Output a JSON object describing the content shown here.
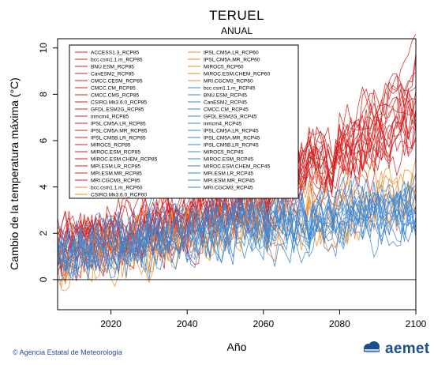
{
  "chart_data": {
    "type": "line",
    "title": "TERUEL",
    "subtitle": "ANUAL",
    "xlabel": "Año",
    "ylabel": "Cambio de la temperatura máxima (°C)",
    "xlim": [
      2006,
      2100
    ],
    "ylim": [
      -1.3,
      10.4
    ],
    "xticks": [
      2020,
      2040,
      2060,
      2080,
      2100
    ],
    "yticks": [
      0,
      2,
      4,
      6,
      8,
      10
    ],
    "legend_position": "top-left",
    "grid": false,
    "colors": {
      "rcp85": "#d62020",
      "rcp60": "#f08c2c",
      "rcp45": "#3b86d4"
    },
    "scenarios": {
      "rcp85": {
        "anchors": [
          [
            2006,
            1.2
          ],
          [
            2020,
            1.7
          ],
          [
            2040,
            2.5
          ],
          [
            2060,
            3.7
          ],
          [
            2080,
            5.4
          ],
          [
            2100,
            7.3
          ]
        ],
        "spread": 0.55
      },
      "rcp60": {
        "anchors": [
          [
            2006,
            1.1
          ],
          [
            2020,
            1.5
          ],
          [
            2040,
            2.0
          ],
          [
            2060,
            2.6
          ],
          [
            2080,
            3.2
          ],
          [
            2100,
            3.9
          ]
        ],
        "spread": 0.5
      },
      "rcp45": {
        "anchors": [
          [
            2006,
            1.1
          ],
          [
            2020,
            1.5
          ],
          [
            2040,
            2.0
          ],
          [
            2060,
            2.5
          ],
          [
            2080,
            2.8
          ],
          [
            2100,
            3.0
          ]
        ],
        "spread": 0.5
      }
    },
    "series": [
      {
        "name": "ACCESS1.3_RCP85",
        "scenario": "rcp85"
      },
      {
        "name": "bcc.csm1.1.m_RCP85",
        "scenario": "rcp85"
      },
      {
        "name": "BNU.ESM_RCP85",
        "scenario": "rcp85"
      },
      {
        "name": "CanESM2_RCP85",
        "scenario": "rcp85"
      },
      {
        "name": "CMCC.CESM_RCP85",
        "scenario": "rcp85"
      },
      {
        "name": "CMCC.CM_RCP85",
        "scenario": "rcp85"
      },
      {
        "name": "CMCC.CMS_RCP85",
        "scenario": "rcp85"
      },
      {
        "name": "CSIRO.Mk3.6.0_RCP85",
        "scenario": "rcp85"
      },
      {
        "name": "GFDL.ESM2G_RCP85",
        "scenario": "rcp85"
      },
      {
        "name": "inmcm4_RCP85",
        "scenario": "rcp85"
      },
      {
        "name": "IPSL.CM5A.LR_RCP85",
        "scenario": "rcp85"
      },
      {
        "name": "IPSL.CM5A.MR_RCP85",
        "scenario": "rcp85"
      },
      {
        "name": "IPSL.CM5B.LR_RCP85",
        "scenario": "rcp85"
      },
      {
        "name": "MIROC5_RCP85",
        "scenario": "rcp85"
      },
      {
        "name": "MIROC.ESM_RCP85",
        "scenario": "rcp85"
      },
      {
        "name": "MIROC.ESM.CHEM_RCP85",
        "scenario": "rcp85"
      },
      {
        "name": "MPI.ESM.LR_RCP85",
        "scenario": "rcp85"
      },
      {
        "name": "MPI.ESM.MR_RCP85",
        "scenario": "rcp85"
      },
      {
        "name": "MRI.CGCM3_RCP85",
        "scenario": "rcp85"
      },
      {
        "name": "bcc.csm1.1.m_RCP60",
        "scenario": "rcp60"
      },
      {
        "name": "CSIRO.Mk3.6.0_RCP60",
        "scenario": "rcp60"
      },
      {
        "name": "IPSL.CM5A.LR_RCP60",
        "scenario": "rcp60"
      },
      {
        "name": "IPSL.CM5A.MR_RCP60",
        "scenario": "rcp60"
      },
      {
        "name": "MIROC5_RCP60",
        "scenario": "rcp60"
      },
      {
        "name": "MIROC.ESM.CHEM_RCP60",
        "scenario": "rcp60"
      },
      {
        "name": "MRI.CGCM3_RCP60",
        "scenario": "rcp60"
      },
      {
        "name": "bcc.csm1.1.m_RCP45",
        "scenario": "rcp45"
      },
      {
        "name": "BNU.ESM_RCP45",
        "scenario": "rcp45"
      },
      {
        "name": "CanESM2_RCP45",
        "scenario": "rcp45"
      },
      {
        "name": "CMCC.CM_RCP45",
        "scenario": "rcp45"
      },
      {
        "name": "GFDL.ESM2G_RCP45",
        "scenario": "rcp45"
      },
      {
        "name": "inmcm4_RCP45",
        "scenario": "rcp45"
      },
      {
        "name": "IPSL.CM5A.LR_RCP45",
        "scenario": "rcp45"
      },
      {
        "name": "IPSL.CM5A.MR_RCP45",
        "scenario": "rcp45"
      },
      {
        "name": "IPSL.CM5B.LR_RCP45",
        "scenario": "rcp45"
      },
      {
        "name": "MIROC5_RCP45",
        "scenario": "rcp45"
      },
      {
        "name": "MIROC.ESM_RCP45",
        "scenario": "rcp45"
      },
      {
        "name": "MIROC.ESM.CHEM_RCP45",
        "scenario": "rcp45"
      },
      {
        "name": "MPI.ESM.LR_RCP45",
        "scenario": "rcp45"
      },
      {
        "name": "MPI.ESM.MR_RCP45",
        "scenario": "rcp45"
      },
      {
        "name": "MRI.CGCM3_RCP45",
        "scenario": "rcp45"
      }
    ]
  },
  "footer": {
    "credit": "© Agencia Estatal de Meteorología",
    "logo_text": "aemet"
  }
}
